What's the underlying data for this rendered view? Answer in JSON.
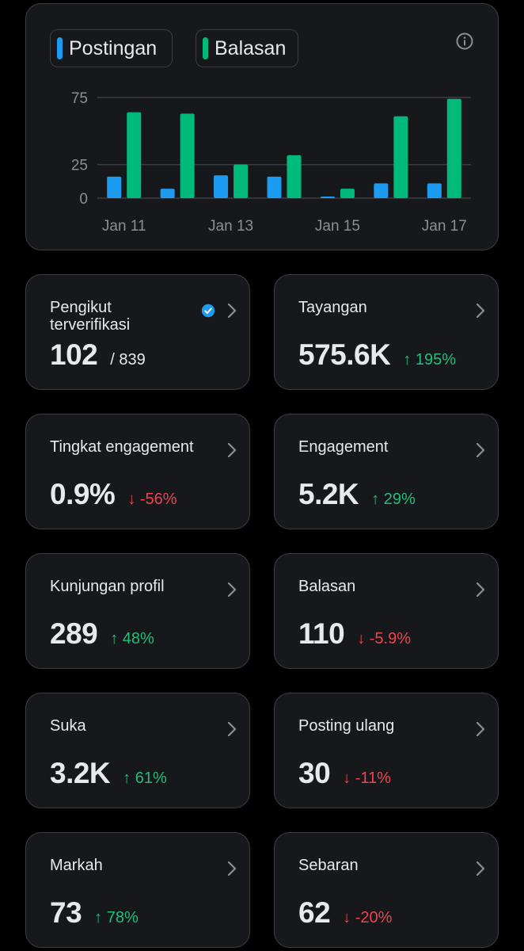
{
  "chart": {
    "legend": [
      {
        "label": "Postingan",
        "color": "#1d9bf0"
      },
      {
        "label": "Balasan",
        "color": "#00ba7c"
      }
    ],
    "info_icon": "info-icon"
  },
  "chart_data": {
    "type": "bar",
    "categories": [
      "Jan 11",
      "Jan 12",
      "Jan 13",
      "Jan 14",
      "Jan 15",
      "Jan 16",
      "Jan 17"
    ],
    "x_tick_labels": [
      "Jan 11",
      "Jan 13",
      "Jan 15",
      "Jan 17"
    ],
    "y_ticks": [
      0,
      25,
      75
    ],
    "ylim": [
      0,
      75
    ],
    "grid": true,
    "legend_position": "top-left",
    "series": [
      {
        "name": "Postingan",
        "color": "#1d9bf0",
        "values": [
          16,
          7,
          17,
          16,
          1,
          11,
          11
        ]
      },
      {
        "name": "Balasan",
        "color": "#00ba7c",
        "values": [
          64,
          63,
          25,
          32,
          7,
          61,
          74
        ]
      }
    ]
  },
  "stats": [
    {
      "label": "Pengikut terverifikasi",
      "value": "102",
      "sub": "/ 839",
      "verified": true
    },
    {
      "label": "Tayangan",
      "value": "575.6K",
      "change": "↑ 195%",
      "direction": "up"
    },
    {
      "label": "Tingkat engagement",
      "value": "0.9%",
      "change": "↓ -56%",
      "direction": "down"
    },
    {
      "label": "Engagement",
      "value": "5.2K",
      "change": "↑ 29%",
      "direction": "up"
    },
    {
      "label": "Kunjungan profil",
      "value": "289",
      "change": "↑ 48%",
      "direction": "up"
    },
    {
      "label": "Balasan",
      "value": "110",
      "change": "↓ -5.9%",
      "direction": "down"
    },
    {
      "label": "Suka",
      "value": "3.2K",
      "change": "↑ 61%",
      "direction": "up"
    },
    {
      "label": "Posting ulang",
      "value": "30",
      "change": "↓ -11%",
      "direction": "down"
    },
    {
      "label": "Markah",
      "value": "73",
      "change": "↑ 78%",
      "direction": "up"
    },
    {
      "label": "Sebaran",
      "value": "62",
      "change": "↓ -20%",
      "direction": "down"
    }
  ],
  "colors": {
    "card_bg": "#16181c",
    "border": "#3a3d42",
    "up": "#1fbf7a",
    "down": "#f0434d",
    "verified": "#1d9bf0"
  }
}
